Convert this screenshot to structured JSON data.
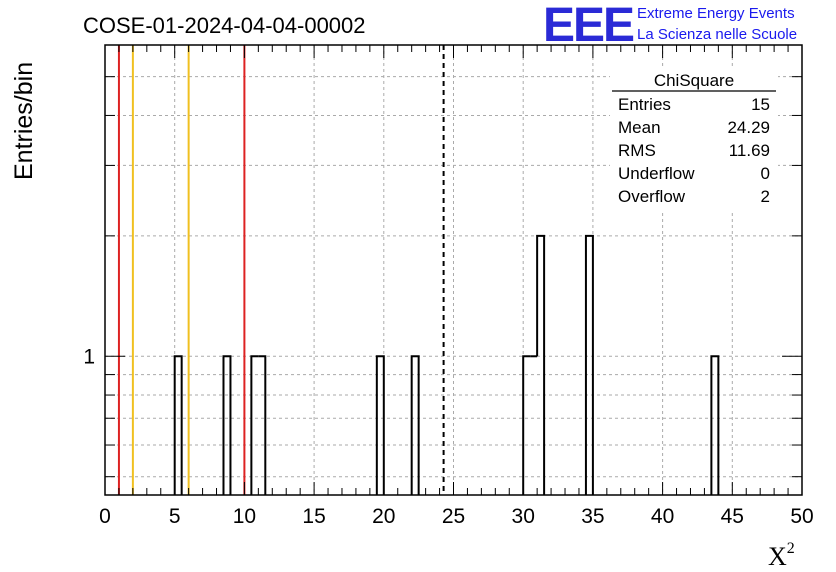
{
  "chart_data": {
    "type": "histogram",
    "title": "COSE-01-2024-04-04-00002",
    "xlabel": "X",
    "xlabel_sup": "2",
    "ylabel": "Entries/bin",
    "xlim": [
      0,
      50
    ],
    "ylim_log": [
      0.45,
      6
    ],
    "log_y": true,
    "grid": true,
    "bin_width": 0.5,
    "x_ticks": [
      0,
      5,
      10,
      15,
      20,
      25,
      30,
      35,
      40,
      45,
      50
    ],
    "y_tick_labels": [
      {
        "value": 1,
        "label": "1"
      }
    ],
    "bins": [
      {
        "x": 5.0,
        "count": 1
      },
      {
        "x": 8.5,
        "count": 1
      },
      {
        "x": 10.5,
        "count": 1
      },
      {
        "x": 11.0,
        "count": 1
      },
      {
        "x": 19.5,
        "count": 1
      },
      {
        "x": 22.0,
        "count": 1
      },
      {
        "x": 30.0,
        "count": 1
      },
      {
        "x": 30.5,
        "count": 1
      },
      {
        "x": 31.0,
        "count": 2
      },
      {
        "x": 34.5,
        "count": 2
      },
      {
        "x": 43.5,
        "count": 1
      }
    ],
    "vertical_lines": [
      {
        "x": 1.0,
        "color": "#dd2222",
        "style": "solid"
      },
      {
        "x": 2.0,
        "color": "#f0c020",
        "style": "solid"
      },
      {
        "x": 6.0,
        "color": "#f0c020",
        "style": "solid"
      },
      {
        "x": 10.0,
        "color": "#dd2222",
        "style": "solid"
      },
      {
        "x": 24.29,
        "color": "#000000",
        "style": "dashed"
      }
    ],
    "stats_box": {
      "title": "ChiSquare",
      "rows": [
        {
          "label": "Entries",
          "value": "15"
        },
        {
          "label": "Mean",
          "value": "24.29"
        },
        {
          "label": "RMS",
          "value": "11.69"
        },
        {
          "label": "Underflow",
          "value": "0"
        },
        {
          "label": "Overflow",
          "value": "2"
        }
      ]
    }
  },
  "logo": {
    "mark": "EEE",
    "line1": "Extreme Energy Events",
    "line2": "La Scienza nelle Scuole",
    "color": "#2a2ad6"
  }
}
